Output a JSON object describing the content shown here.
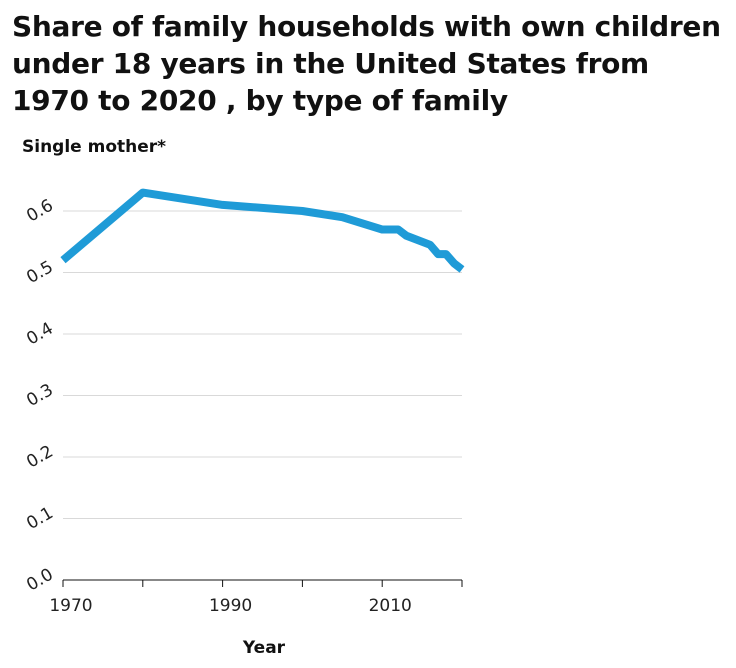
{
  "chart_data": {
    "type": "line",
    "title": "Share of family households with own children under 18 years in the United States from 1970 to 2020 , by type of family",
    "xlabel": "Year",
    "ylabel": "Single mother*",
    "xlim": [
      1970,
      2020
    ],
    "ylim": [
      0,
      0.63
    ],
    "x_ticks": [
      1970,
      1980,
      1990,
      2000,
      2010,
      2020
    ],
    "x_tick_labels": [
      "1970",
      "1990",
      "2010"
    ],
    "y_ticks": [
      0.0,
      0.1,
      0.2,
      0.3,
      0.4,
      0.5,
      0.6
    ],
    "y_tick_labels": [
      "0.0",
      "0.1",
      "0.2",
      "0.3",
      "0.4",
      "0.5",
      "0.6"
    ],
    "grid": "horizontal",
    "color": "#1f9bd7",
    "series": [
      {
        "x": [
          1970,
          1980,
          1990,
          2000,
          2005,
          2010,
          2012,
          2013,
          2016,
          2017,
          2018,
          2019,
          2020
        ],
        "y": [
          0.52,
          0.63,
          0.61,
          0.6,
          0.59,
          0.57,
          0.57,
          0.56,
          0.545,
          0.53,
          0.53,
          0.515,
          0.505
        ]
      }
    ]
  }
}
